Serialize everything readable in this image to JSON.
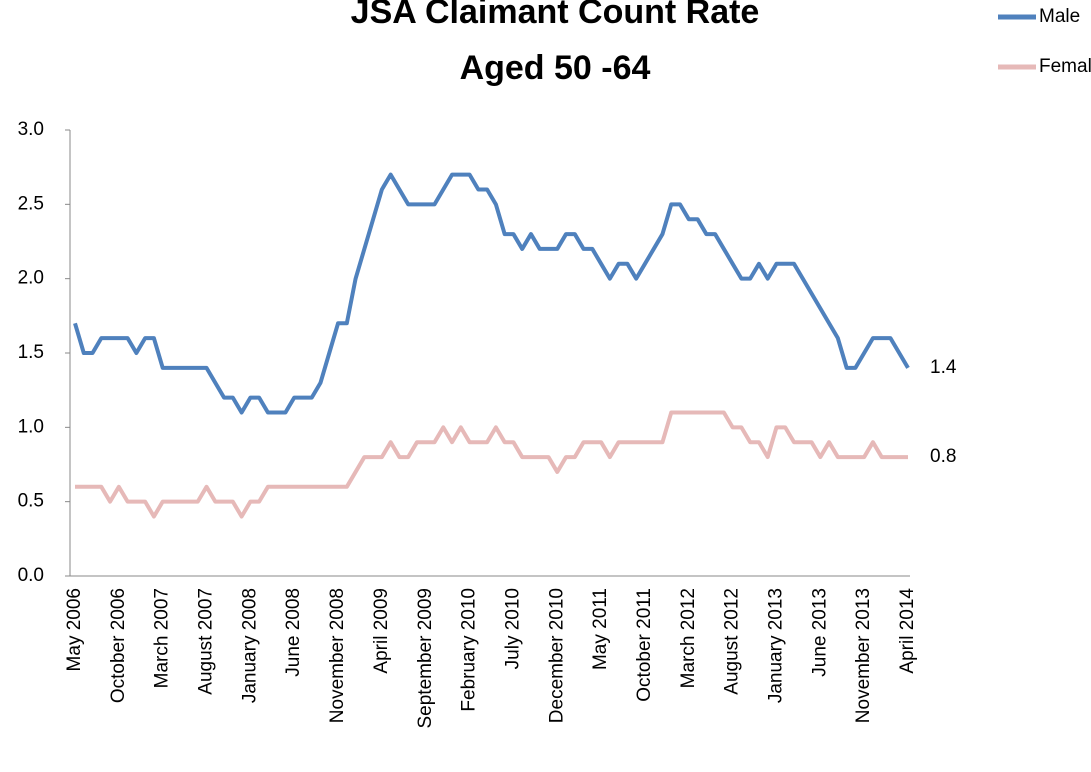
{
  "chart_data": {
    "type": "line",
    "title": "JSA Claimant Count Rate",
    "subtitle": "Aged 50 -64",
    "categories": [
      "May 2006",
      null,
      null,
      null,
      null,
      "October 2006",
      null,
      null,
      null,
      null,
      "March 2007",
      null,
      null,
      null,
      null,
      "August 2007",
      null,
      null,
      null,
      null,
      "January 2008",
      null,
      null,
      null,
      null,
      "June 2008",
      null,
      null,
      null,
      null,
      "November 2008",
      null,
      null,
      null,
      null,
      "April 2009",
      null,
      null,
      null,
      null,
      "September 2009",
      null,
      null,
      null,
      null,
      "February 2010",
      null,
      null,
      null,
      null,
      "July 2010",
      null,
      null,
      null,
      null,
      "December 2010",
      null,
      null,
      null,
      null,
      "May 2011",
      null,
      null,
      null,
      null,
      "October 2011",
      null,
      null,
      null,
      null,
      "March 2012",
      null,
      null,
      null,
      null,
      "August 2012",
      null,
      null,
      null,
      null,
      "January 2013",
      null,
      null,
      null,
      null,
      "June 2013",
      null,
      null,
      null,
      null,
      "November 2013",
      null,
      null,
      null,
      null,
      "April 2014"
    ],
    "series": [
      {
        "name": "Male",
        "color": "#4f81bd",
        "values": [
          1.7,
          1.5,
          1.5,
          1.6,
          1.6,
          1.6,
          1.6,
          1.5,
          1.6,
          1.6,
          1.4,
          1.4,
          1.4,
          1.4,
          1.4,
          1.4,
          1.3,
          1.2,
          1.2,
          1.1,
          1.2,
          1.2,
          1.1,
          1.1,
          1.1,
          1.2,
          1.2,
          1.2,
          1.3,
          1.5,
          1.7,
          1.7,
          2.0,
          2.2,
          2.4,
          2.6,
          2.7,
          2.6,
          2.5,
          2.5,
          2.5,
          2.5,
          2.6,
          2.7,
          2.7,
          2.7,
          2.6,
          2.6,
          2.5,
          2.3,
          2.3,
          2.2,
          2.3,
          2.2,
          2.2,
          2.2,
          2.3,
          2.3,
          2.2,
          2.2,
          2.1,
          2.0,
          2.1,
          2.1,
          2.0,
          2.1,
          2.2,
          2.3,
          2.5,
          2.5,
          2.4,
          2.4,
          2.3,
          2.3,
          2.2,
          2.1,
          2.0,
          2.0,
          2.1,
          2.0,
          2.1,
          2.1,
          2.1,
          2.0,
          1.9,
          1.8,
          1.7,
          1.6,
          1.4,
          1.4,
          1.5,
          1.6,
          1.6,
          1.6,
          1.5,
          1.4
        ]
      },
      {
        "name": "Female",
        "color": "#e6b9b8",
        "values": [
          0.6,
          0.6,
          0.6,
          0.6,
          0.5,
          0.6,
          0.5,
          0.5,
          0.5,
          0.4,
          0.5,
          0.5,
          0.5,
          0.5,
          0.5,
          0.6,
          0.5,
          0.5,
          0.5,
          0.4,
          0.5,
          0.5,
          0.6,
          0.6,
          0.6,
          0.6,
          0.6,
          0.6,
          0.6,
          0.6,
          0.6,
          0.6,
          0.7,
          0.8,
          0.8,
          0.8,
          0.9,
          0.8,
          0.8,
          0.9,
          0.9,
          0.9,
          1.0,
          0.9,
          1.0,
          0.9,
          0.9,
          0.9,
          1.0,
          0.9,
          0.9,
          0.8,
          0.8,
          0.8,
          0.8,
          0.7,
          0.8,
          0.8,
          0.9,
          0.9,
          0.9,
          0.8,
          0.9,
          0.9,
          0.9,
          0.9,
          0.9,
          0.9,
          1.1,
          1.1,
          1.1,
          1.1,
          1.1,
          1.1,
          1.1,
          1.0,
          1.0,
          0.9,
          0.9,
          0.8,
          1.0,
          1.0,
          0.9,
          0.9,
          0.9,
          0.8,
          0.9,
          0.8,
          0.8,
          0.8,
          0.8,
          0.9,
          0.8,
          0.8,
          0.8,
          0.8
        ]
      }
    ],
    "ylim": [
      0,
      3
    ],
    "yticks": [
      {
        "value": 0,
        "label": "0.0"
      },
      0.5,
      {
        "value": 1,
        "label": "1.0"
      },
      1.5,
      {
        "value": 2,
        "label": "2.0"
      },
      2.5,
      {
        "value": 3,
        "label": "3.0"
      }
    ],
    "grid": false,
    "legend": "top-right"
  }
}
